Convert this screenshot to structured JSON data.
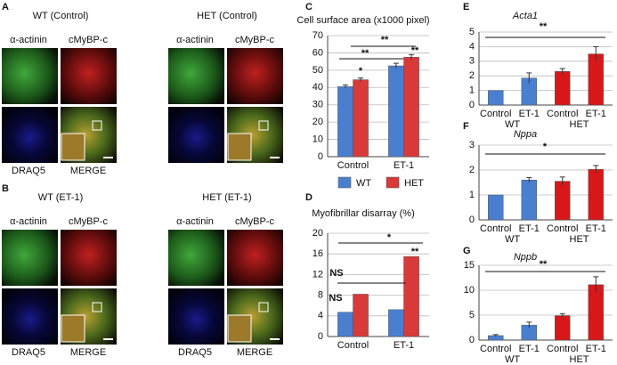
{
  "images": {
    "panel_labels": [
      "A",
      "B"
    ],
    "groups": [
      {
        "title": "WT (Control)",
        "labels": [
          "α-actinin",
          "cMyBP-c",
          "DRAQ5",
          "MERGE"
        ]
      },
      {
        "title": "HET (Control)",
        "labels": [
          "α-actinin",
          "cMyBP-c"
        ]
      },
      {
        "title": "WT (ET-1)",
        "labels": [
          "α-actinin",
          "cMyBP-c",
          "DRAQ5",
          "MERGE"
        ]
      },
      {
        "title": "HET (ET-1)",
        "labels": [
          "α-actinin",
          "cMyBP-c",
          "DRAQ5",
          "MERGE"
        ]
      }
    ]
  },
  "chart_data": [
    {
      "type": "bar",
      "panel": "C",
      "title": "Cell surface area (x1000 pixel)",
      "categories": [
        "Control",
        "ET-1"
      ],
      "series": [
        {
          "name": "WT",
          "color": "#4a7fd0",
          "values": [
            40.5,
            52.5
          ],
          "errors": [
            1,
            1.5
          ]
        },
        {
          "name": "HET",
          "color": "#d83a3a",
          "values": [
            44.5,
            57.5
          ],
          "errors": [
            1,
            1.5
          ]
        }
      ],
      "ylim": [
        0,
        70
      ],
      "yticks": [
        0,
        10,
        20,
        30,
        40,
        50,
        60,
        70
      ],
      "annotations": [
        "*",
        "**",
        "**",
        "**"
      ]
    },
    {
      "type": "bar",
      "panel": "D",
      "title": "Myofibrillar disarray (%)",
      "categories": [
        "Control",
        "ET-1"
      ],
      "series": [
        {
          "name": "WT",
          "color": "#4a7fd0",
          "values": [
            4.7,
            5.2
          ]
        },
        {
          "name": "HET",
          "color": "#d83a3a",
          "values": [
            8.2,
            15.5
          ]
        }
      ],
      "ylim": [
        0,
        20
      ],
      "yticks": [
        0,
        4,
        8,
        12,
        16,
        20
      ],
      "annotations": [
        "NS",
        "NS",
        "*",
        "**"
      ]
    },
    {
      "type": "bar",
      "panel": "E",
      "title": "Acta1",
      "categories": [
        "Control",
        "ET-1",
        "Control",
        "ET-1"
      ],
      "groups": [
        "WT",
        "HET"
      ],
      "values": [
        1,
        1.85,
        2.3,
        3.5
      ],
      "errors": [
        0,
        0.35,
        0.2,
        0.5
      ],
      "colors": [
        "#4a7fd0",
        "#4a7fd0",
        "#d81818",
        "#d81818"
      ],
      "ylim": [
        0,
        5
      ],
      "yticks": [
        0,
        1,
        2,
        3,
        4,
        5
      ],
      "annotations": [
        "**"
      ]
    },
    {
      "type": "bar",
      "panel": "F",
      "title": "Nppa",
      "categories": [
        "Control",
        "ET-1",
        "Control",
        "ET-1"
      ],
      "groups": [
        "WT",
        "HET"
      ],
      "values": [
        1,
        1.6,
        1.55,
        2.03
      ],
      "errors": [
        0,
        0.1,
        0.17,
        0.15
      ],
      "colors": [
        "#4a7fd0",
        "#4a7fd0",
        "#d81818",
        "#d81818"
      ],
      "ylim": [
        0,
        3
      ],
      "yticks": [
        0,
        1,
        2,
        3
      ],
      "annotations": [
        "*"
      ]
    },
    {
      "type": "bar",
      "panel": "G",
      "title": "Nppb",
      "categories": [
        "Control",
        "ET-1",
        "Control",
        "ET-1"
      ],
      "groups": [
        "WT",
        "HET"
      ],
      "values": [
        0.9,
        3.0,
        4.9,
        11.1
      ],
      "errors": [
        0.2,
        0.6,
        0.4,
        1.6
      ],
      "colors": [
        "#4a7fd0",
        "#4a7fd0",
        "#d81818",
        "#d81818"
      ],
      "ylim": [
        0,
        15
      ],
      "yticks": [
        0,
        5,
        10,
        15
      ],
      "annotations": [
        "**"
      ]
    }
  ]
}
